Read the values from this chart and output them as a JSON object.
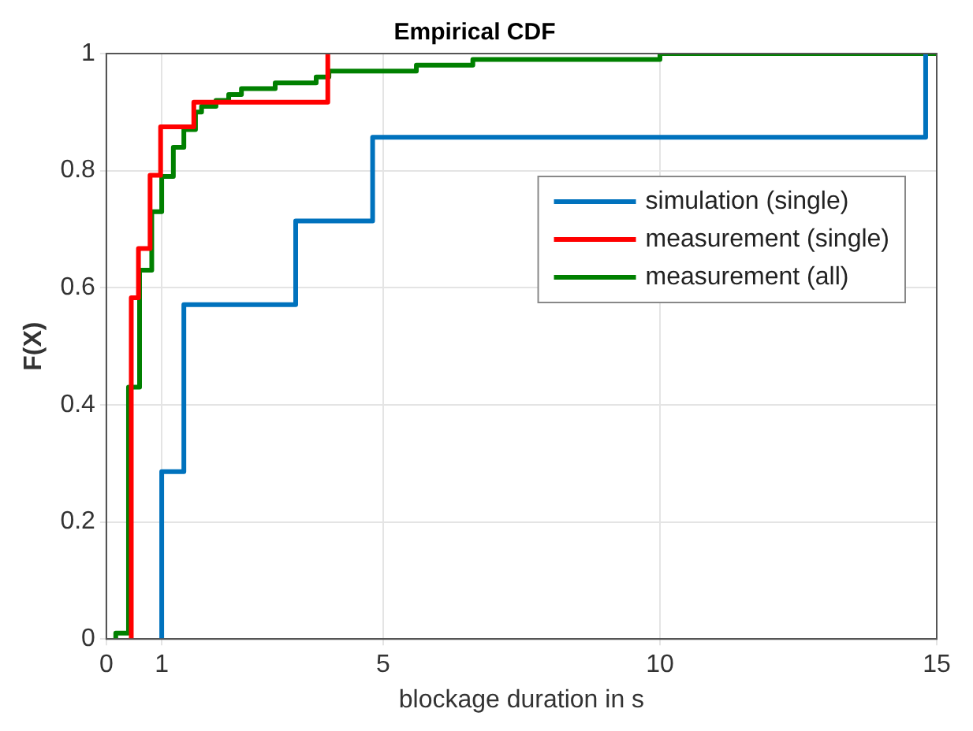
{
  "chart_data": {
    "type": "step",
    "title": "Empirical CDF",
    "xlabel": "blockage duration in s",
    "ylabel": "F(X)",
    "xlim": [
      0,
      15
    ],
    "xticks": [
      0,
      1,
      5,
      10,
      15
    ],
    "ylim": [
      0,
      1
    ],
    "yticks": [
      0,
      0.2,
      0.4,
      0.6,
      0.8,
      1
    ],
    "grid": true,
    "legend": "top right",
    "marker": "none",
    "series": [
      {
        "name": "simulation (single)",
        "color": "#0072bd",
        "x": [
          1,
          1,
          1.4,
          3.42,
          4.81,
          14.8
        ],
        "values": [
          0,
          0.286,
          0.571,
          0.714,
          0.857,
          1
        ]
      },
      {
        "name": "measurement (single)",
        "color": "#ff0000",
        "x": [
          0.45,
          0.45,
          0.58,
          0.79,
          0.98,
          1.58,
          4.0
        ],
        "values": [
          0,
          0.583,
          0.667,
          0.792,
          0.875,
          0.917,
          1
        ]
      },
      {
        "name": "measurement (all)",
        "color": "#008000",
        "x": [
          0.17,
          0.17,
          0.4,
          0.6,
          0.82,
          1.0,
          1.21,
          1.4,
          1.61,
          1.72,
          1.98,
          2.21,
          2.44,
          3.05,
          3.18,
          3.79,
          4.02,
          4.81,
          5.6,
          6.62,
          7.04,
          10.0,
          15
        ],
        "values": [
          0,
          0.01,
          0.43,
          0.63,
          0.73,
          0.79,
          0.84,
          0.87,
          0.9,
          0.91,
          0.92,
          0.93,
          0.94,
          0.95,
          0.95,
          0.96,
          0.97,
          0.97,
          0.98,
          0.99,
          0.99,
          1.0,
          1.0
        ]
      }
    ]
  }
}
